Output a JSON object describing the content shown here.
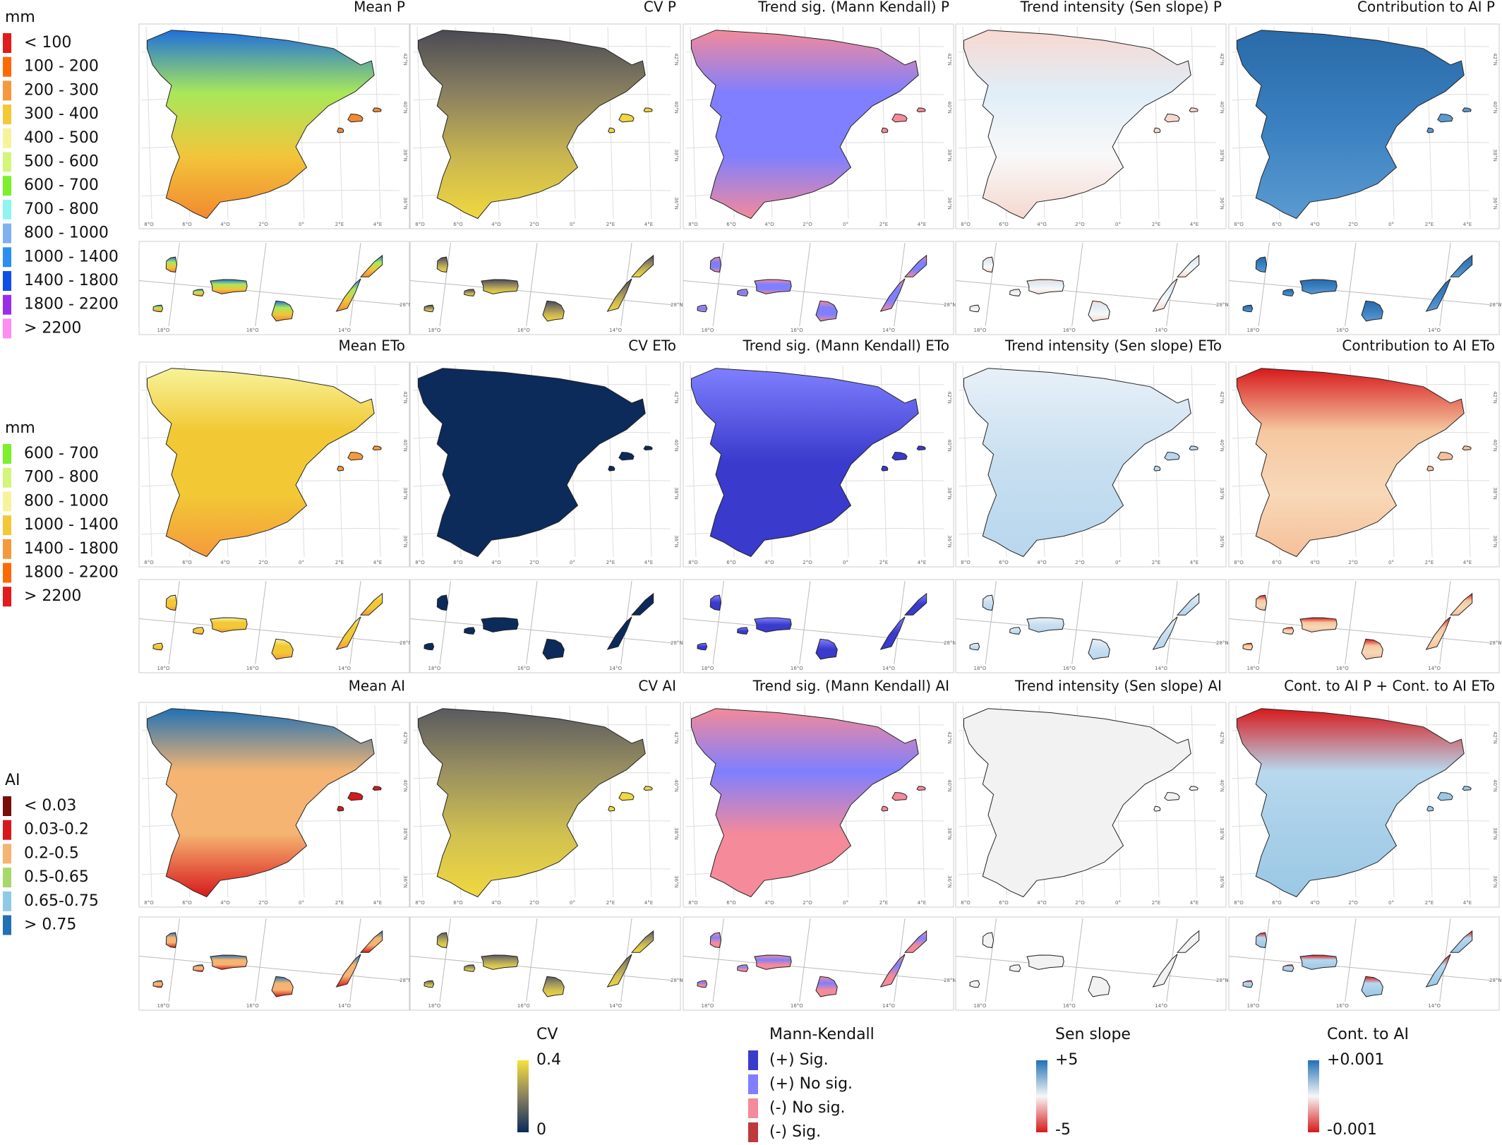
{
  "graticule": {
    "mainland_x": [
      "8°O",
      "6°O",
      "4°O",
      "2°O",
      "0°",
      "2°E",
      "4°E"
    ],
    "mainland_y": [
      "42°N",
      "40°N",
      "38°N",
      "36°N"
    ],
    "canary_x": [
      "18°O",
      "16°O",
      "14°O"
    ],
    "canary_y": [
      "28°N"
    ]
  },
  "panels": [
    {
      "title": "Mean P",
      "colors": [
        "#1e6fdc",
        "#a8e85a",
        "#f2c53a",
        "#f28a30"
      ]
    },
    {
      "title": "CV P",
      "colors": [
        "#4a4a55",
        "#8a8060",
        "#c8b550",
        "#f0d840"
      ]
    },
    {
      "title": "Trend sig. (Mann Kendall) P",
      "colors": [
        "#f48a9a",
        "#7f7fff",
        "#7f7fff",
        "#f48a9a"
      ]
    },
    {
      "title": "Trend intensity (Sen slope) P",
      "colors": [
        "#f8d8d0",
        "#e0eef8",
        "#f8f8f8",
        "#f6d8d0"
      ]
    },
    {
      "title": "Contribution to AI P",
      "colors": [
        "#2a6aa8",
        "#3a80c0",
        "#5a9ad0"
      ]
    },
    {
      "title": "Mean ETo",
      "colors": [
        "#f7f39a",
        "#f2c935",
        "#f2c935",
        "#f59a3c"
      ]
    },
    {
      "title": "CV ETo",
      "colors": [
        "#0c2a5a",
        "#0c2a5a"
      ]
    },
    {
      "title": "Trend sig. (Mann Kendall) ETo",
      "colors": [
        "#7f7fff",
        "#3a3acc",
        "#3a3acc"
      ]
    },
    {
      "title": "Trend intensity (Sen slope) ETo",
      "colors": [
        "#e8f0f8",
        "#c8dff0",
        "#b8d6ee"
      ]
    },
    {
      "title": "Contribution to AI ETo",
      "colors": [
        "#d7191c",
        "#f5c8a0",
        "#f8d8b8",
        "#f5c09a"
      ]
    },
    {
      "title": "Mean AI",
      "colors": [
        "#2171b5",
        "#f5b471",
        "#f5b471",
        "#d7191c"
      ]
    },
    {
      "title": "CV AI",
      "colors": [
        "#5a5a60",
        "#9a9060",
        "#d0c050",
        "#f0d840"
      ]
    },
    {
      "title": "Trend sig. (Mann Kendall) AI",
      "colors": [
        "#f48a9a",
        "#7f7fff",
        "#f48a9a",
        "#f48a9a"
      ]
    },
    {
      "title": "Trend intensity (Sen slope) AI",
      "colors": [
        "#f2f2f2",
        "#f2f2f2"
      ]
    },
    {
      "title": "Cont. to AI P + Cont. to AI ETo",
      "colors": [
        "#d7191c",
        "#b8d8ee",
        "#a8cfe8",
        "#9ac8e6"
      ]
    }
  ],
  "left_legends": [
    {
      "title": "mm",
      "items": [
        {
          "label": "< 100",
          "color": "#e31a1c"
        },
        {
          "label": "100 - 200",
          "color": "#ff6a00"
        },
        {
          "label": "200 - 300",
          "color": "#f59a3c"
        },
        {
          "label": "300 - 400",
          "color": "#f2c935"
        },
        {
          "label": "400 - 500",
          "color": "#f7f39a"
        },
        {
          "label": "500 - 600",
          "color": "#d4f57a"
        },
        {
          "label": "600 - 700",
          "color": "#7cf02a"
        },
        {
          "label": "700 - 800",
          "color": "#8ef5f0"
        },
        {
          "label": "800 - 1000",
          "color": "#7fb0f0"
        },
        {
          "label": "1000 - 1400",
          "color": "#2a8ff0"
        },
        {
          "label": "1400 - 1800",
          "color": "#1050e8"
        },
        {
          "label": "1800 - 2200",
          "color": "#9a2ee8"
        },
        {
          "label": "> 2200",
          "color": "#ff8cf0"
        }
      ]
    },
    {
      "title": "mm",
      "items": [
        {
          "label": "600 - 700",
          "color": "#7cf02a"
        },
        {
          "label": "700 - 800",
          "color": "#d4f57a"
        },
        {
          "label": "800 - 1000",
          "color": "#f7f39a"
        },
        {
          "label": "1000 - 1400",
          "color": "#f2c935"
        },
        {
          "label": "1400 - 1800",
          "color": "#f59a3c"
        },
        {
          "label": "1800 - 2200",
          "color": "#ff6a00"
        },
        {
          "label": "> 2200",
          "color": "#e31a1c"
        }
      ]
    },
    {
      "title": "AI",
      "items": [
        {
          "label": "< 0.03",
          "color": "#7a0c0c"
        },
        {
          "label": "0.03-0.2",
          "color": "#d7191c"
        },
        {
          "label": "0.2-0.5",
          "color": "#f5b471"
        },
        {
          "label": "0.5-0.65",
          "color": "#a6d96a"
        },
        {
          "label": "0.65-0.75",
          "color": "#8ecae6"
        },
        {
          "label": "> 0.75",
          "color": "#2171b5"
        }
      ]
    }
  ],
  "bottom_legends": {
    "cv": {
      "title": "CV",
      "max": "0.4",
      "min": "0",
      "colors": [
        "#f5e23a",
        "#8a8060",
        "#0c2a5a"
      ]
    },
    "mann_kendall": {
      "title": "Mann-Kendall",
      "items": [
        {
          "label": "(+) Sig.",
          "color": "#3a3acc"
        },
        {
          "label": "(+) No sig.",
          "color": "#7f7fff"
        },
        {
          "label": "(-) No sig.",
          "color": "#f48a9a"
        },
        {
          "label": "(-) Sig.",
          "color": "#c0393b"
        }
      ]
    },
    "sen_slope": {
      "title": "Sen slope",
      "max": "+5",
      "min": "-5",
      "colors": [
        "#2171b5",
        "#f7f7f7",
        "#d7191c"
      ]
    },
    "cont_ai": {
      "title": "Cont. to AI",
      "max": "+0.001",
      "min": "-0.001",
      "colors": [
        "#2171b5",
        "#f7f7f7",
        "#d7191c"
      ]
    }
  }
}
